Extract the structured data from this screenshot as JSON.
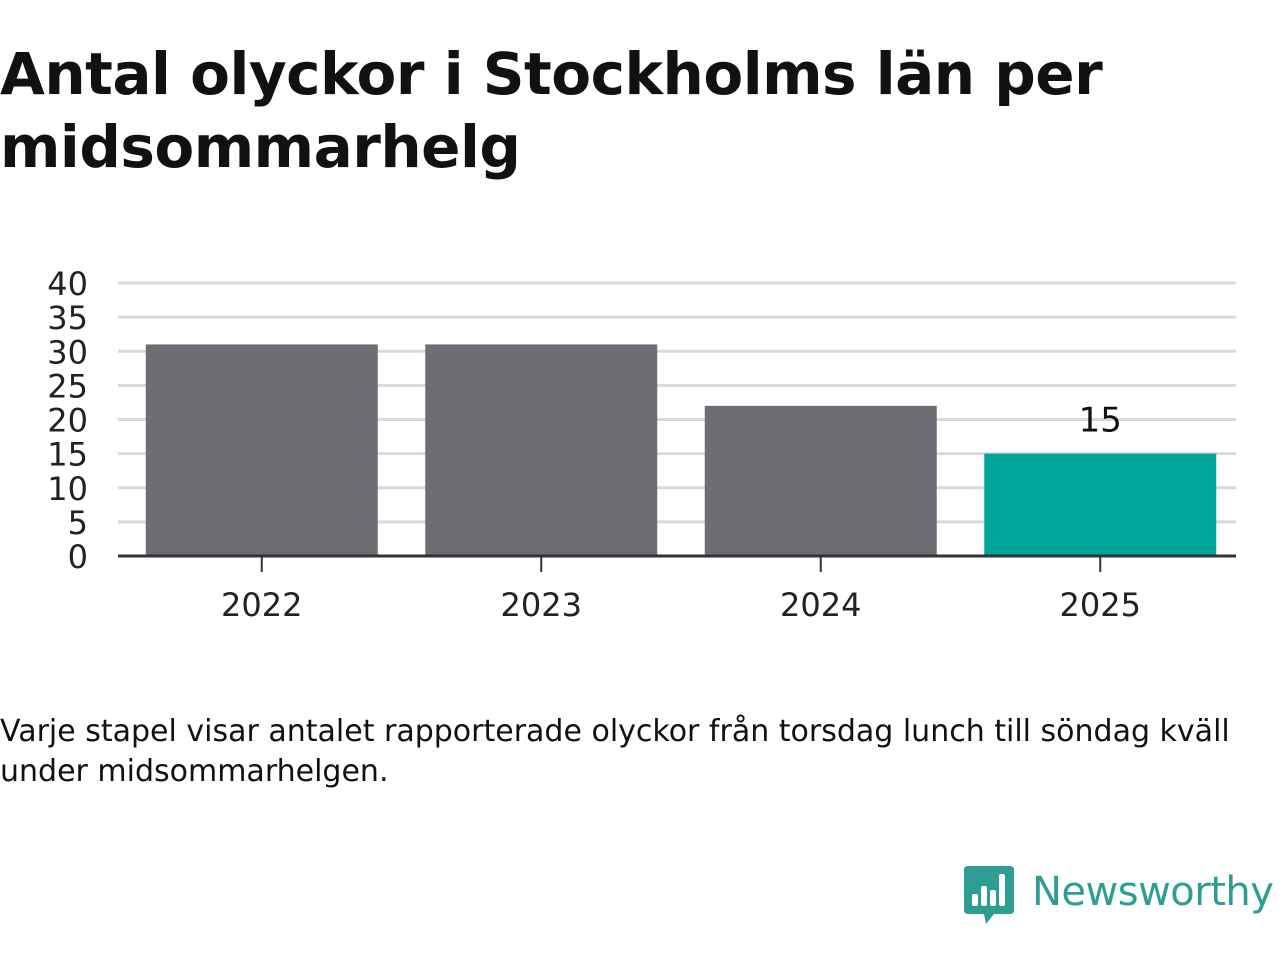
{
  "chart_data": {
    "type": "bar",
    "title": "Antal olyckor i Stockholms län per midsommarhelg",
    "caption": "Varje stapel visar antalet rapporterade olyckor från torsdag lunch till söndag kväll under midsommarhelgen.",
    "categories": [
      "2022",
      "2023",
      "2024",
      "2025"
    ],
    "values": [
      31,
      31,
      22,
      15
    ],
    "highlight_index": 3,
    "data_labels": [
      {
        "index": 3,
        "text": "15"
      }
    ],
    "ylim": [
      0,
      40
    ],
    "yticks": [
      0,
      5,
      10,
      15,
      20,
      25,
      30,
      35,
      40
    ],
    "grid": true,
    "xlabel": "",
    "ylabel": "",
    "colors": {
      "bar": "#6e6d73",
      "highlight": "#00a59a",
      "grid": "#d9d9d9",
      "axis": "#333333",
      "tick_text": "#222222"
    }
  },
  "brand": {
    "name": "Newsworthy",
    "icon": "newsworthy-logo-icon",
    "color": "#2e9e94"
  }
}
